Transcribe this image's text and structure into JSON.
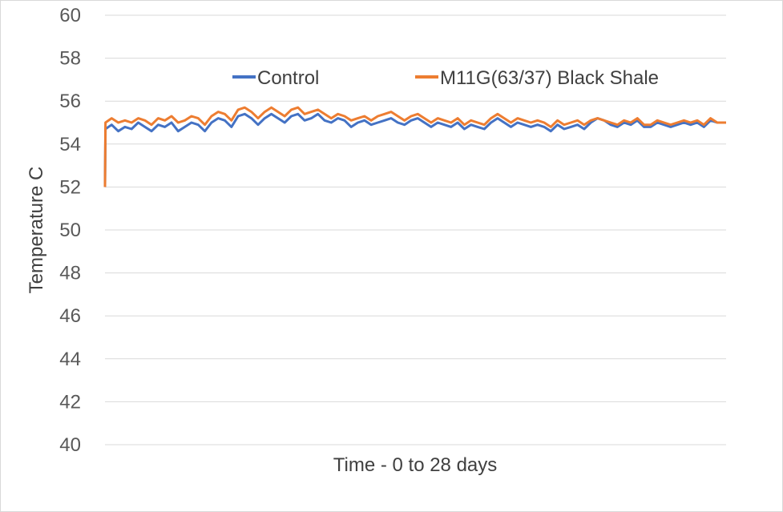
{
  "chart_data": {
    "type": "line",
    "title": "",
    "xlabel": "Time - 0 to 28 days",
    "ylabel": "Temperature C",
    "ylim": [
      40,
      60
    ],
    "yticks": [
      40,
      42,
      44,
      46,
      48,
      50,
      52,
      54,
      56,
      58,
      60
    ],
    "xlim": [
      0,
      28
    ],
    "grid": true,
    "legend_position": "top",
    "series": [
      {
        "name": "Control",
        "color": "#4472C4",
        "x": [
          0,
          0.02,
          0.3,
          0.6,
          0.9,
          1.2,
          1.5,
          1.8,
          2.1,
          2.4,
          2.7,
          3.0,
          3.3,
          3.6,
          3.9,
          4.2,
          4.5,
          4.8,
          5.1,
          5.4,
          5.7,
          6.0,
          6.3,
          6.6,
          6.9,
          7.2,
          7.5,
          7.8,
          8.1,
          8.4,
          8.7,
          9.0,
          9.3,
          9.6,
          9.9,
          10.2,
          10.5,
          10.8,
          11.1,
          11.4,
          11.7,
          12.0,
          12.3,
          12.6,
          12.9,
          13.2,
          13.5,
          13.8,
          14.1,
          14.4,
          14.7,
          15.0,
          15.3,
          15.6,
          15.9,
          16.2,
          16.5,
          16.8,
          17.1,
          17.4,
          17.7,
          18.0,
          18.3,
          18.6,
          18.9,
          19.2,
          19.5,
          19.8,
          20.1,
          20.4,
          20.7,
          21.0,
          21.3,
          21.6,
          21.9,
          22.2,
          22.5,
          22.8,
          23.1,
          23.4,
          23.7,
          24.0,
          24.3,
          24.6,
          24.9,
          25.2,
          25.5,
          25.8,
          26.1,
          26.4,
          26.7,
          27.0,
          27.3,
          27.6,
          28.0
        ],
        "values": [
          52.0,
          54.7,
          54.9,
          54.6,
          54.8,
          54.7,
          55.0,
          54.8,
          54.6,
          54.9,
          54.8,
          55.0,
          54.6,
          54.8,
          55.0,
          54.9,
          54.6,
          55.0,
          55.2,
          55.1,
          54.8,
          55.3,
          55.4,
          55.2,
          54.9,
          55.2,
          55.4,
          55.2,
          55.0,
          55.3,
          55.4,
          55.1,
          55.2,
          55.4,
          55.1,
          55.0,
          55.2,
          55.1,
          54.8,
          55.0,
          55.1,
          54.9,
          55.0,
          55.1,
          55.2,
          55.0,
          54.9,
          55.1,
          55.2,
          55.0,
          54.8,
          55.0,
          54.9,
          54.8,
          55.0,
          54.7,
          54.9,
          54.8,
          54.7,
          55.0,
          55.2,
          55.0,
          54.8,
          55.0,
          54.9,
          54.8,
          54.9,
          54.8,
          54.6,
          54.9,
          54.7,
          54.8,
          54.9,
          54.7,
          55.0,
          55.2,
          55.1,
          54.9,
          54.8,
          55.0,
          54.9,
          55.1,
          54.8,
          54.8,
          55.0,
          54.9,
          54.8,
          54.9,
          55.0,
          54.9,
          55.0,
          54.8,
          55.1,
          55.0,
          55.0
        ]
      },
      {
        "name": "M11G(63/37) Black Shale",
        "color": "#ED7D31",
        "x": [
          0,
          0.02,
          0.3,
          0.6,
          0.9,
          1.2,
          1.5,
          1.8,
          2.1,
          2.4,
          2.7,
          3.0,
          3.3,
          3.6,
          3.9,
          4.2,
          4.5,
          4.8,
          5.1,
          5.4,
          5.7,
          6.0,
          6.3,
          6.6,
          6.9,
          7.2,
          7.5,
          7.8,
          8.1,
          8.4,
          8.7,
          9.0,
          9.3,
          9.6,
          9.9,
          10.2,
          10.5,
          10.8,
          11.1,
          11.4,
          11.7,
          12.0,
          12.3,
          12.6,
          12.9,
          13.2,
          13.5,
          13.8,
          14.1,
          14.4,
          14.7,
          15.0,
          15.3,
          15.6,
          15.9,
          16.2,
          16.5,
          16.8,
          17.1,
          17.4,
          17.7,
          18.0,
          18.3,
          18.6,
          18.9,
          19.2,
          19.5,
          19.8,
          20.1,
          20.4,
          20.7,
          21.0,
          21.3,
          21.6,
          21.9,
          22.2,
          22.5,
          22.8,
          23.1,
          23.4,
          23.7,
          24.0,
          24.3,
          24.6,
          24.9,
          25.2,
          25.5,
          25.8,
          26.1,
          26.4,
          26.7,
          27.0,
          27.3,
          27.6,
          28.0
        ],
        "values": [
          52.0,
          55.0,
          55.2,
          55.0,
          55.1,
          55.0,
          55.2,
          55.1,
          54.9,
          55.2,
          55.1,
          55.3,
          55.0,
          55.1,
          55.3,
          55.2,
          54.9,
          55.3,
          55.5,
          55.4,
          55.1,
          55.6,
          55.7,
          55.5,
          55.2,
          55.5,
          55.7,
          55.5,
          55.3,
          55.6,
          55.7,
          55.4,
          55.5,
          55.6,
          55.4,
          55.2,
          55.4,
          55.3,
          55.1,
          55.2,
          55.3,
          55.1,
          55.3,
          55.4,
          55.5,
          55.3,
          55.1,
          55.3,
          55.4,
          55.2,
          55.0,
          55.2,
          55.1,
          55.0,
          55.2,
          54.9,
          55.1,
          55.0,
          54.9,
          55.2,
          55.4,
          55.2,
          55.0,
          55.2,
          55.1,
          55.0,
          55.1,
          55.0,
          54.8,
          55.1,
          54.9,
          55.0,
          55.1,
          54.9,
          55.1,
          55.2,
          55.1,
          55.0,
          54.9,
          55.1,
          55.0,
          55.2,
          54.9,
          54.9,
          55.1,
          55.0,
          54.9,
          55.0,
          55.1,
          55.0,
          55.1,
          54.9,
          55.2,
          55.0,
          55.0
        ]
      }
    ]
  }
}
